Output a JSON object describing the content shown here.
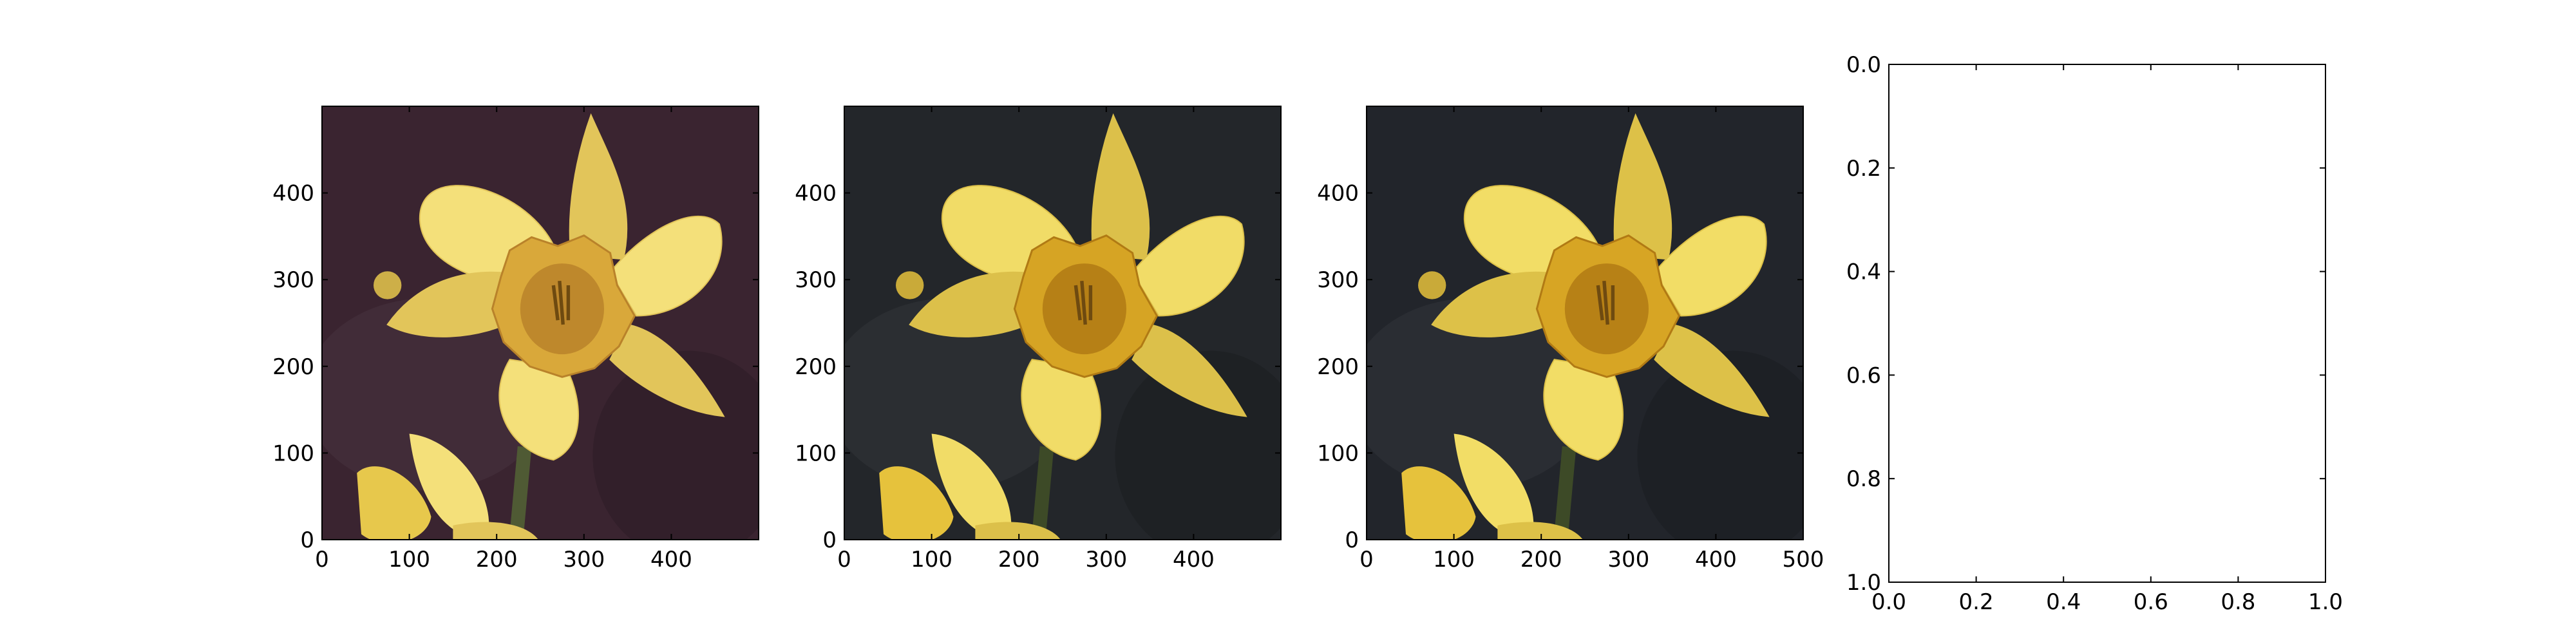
{
  "chart_data": [
    {
      "type": "image",
      "title": "",
      "xlabel": "",
      "ylabel": "",
      "xlim": [
        0,
        500
      ],
      "ylim": [
        500,
        0
      ],
      "xticks": [
        0,
        100,
        200,
        300,
        400
      ],
      "yticks": [
        0,
        100,
        200,
        300,
        400
      ],
      "colors": {
        "background": "#3a2430",
        "petal": "#f4e07a",
        "petal_shade": "#e2c55a",
        "trumpet": "#d9a83a",
        "trumpet_inner": "#b9822a",
        "stem": "#4f5a34",
        "bud": "#e7c84c"
      }
    },
    {
      "type": "image",
      "title": "",
      "xlabel": "",
      "ylabel": "",
      "xlim": [
        0,
        500
      ],
      "ylim": [
        500,
        0
      ],
      "xticks": [
        0,
        100,
        200,
        300,
        400
      ],
      "yticks": [
        0,
        100,
        200,
        300,
        400
      ],
      "colors": {
        "background": "#23262a",
        "petal": "#f1dc67",
        "petal_shade": "#dcc04a",
        "trumpet": "#d6a424",
        "trumpet_inner": "#b07a14",
        "stem": "#3d4a27",
        "bud": "#e6c23c"
      }
    },
    {
      "type": "image",
      "title": "",
      "xlabel": "",
      "ylabel": "",
      "xlim": [
        0,
        500
      ],
      "ylim": [
        500,
        0
      ],
      "xticks": [
        0,
        100,
        200,
        300,
        400,
        500
      ],
      "yticks": [
        0,
        100,
        200,
        300,
        400
      ],
      "colors": {
        "background": "#22252b",
        "petal": "#f2dd66",
        "petal_shade": "#ddc148",
        "trumpet": "#d7a524",
        "trumpet_inner": "#b17a14",
        "stem": "#3d4a27",
        "bud": "#e6c23c"
      }
    },
    {
      "type": "line",
      "title": "",
      "xlabel": "",
      "ylabel": "",
      "xlim": [
        0,
        1
      ],
      "ylim": [
        0,
        1
      ],
      "xticks": [
        0.0,
        0.2,
        0.4,
        0.6,
        0.8,
        1.0
      ],
      "yticks": [
        0.0,
        0.2,
        0.4,
        0.6,
        0.8,
        1.0
      ],
      "series": []
    }
  ]
}
